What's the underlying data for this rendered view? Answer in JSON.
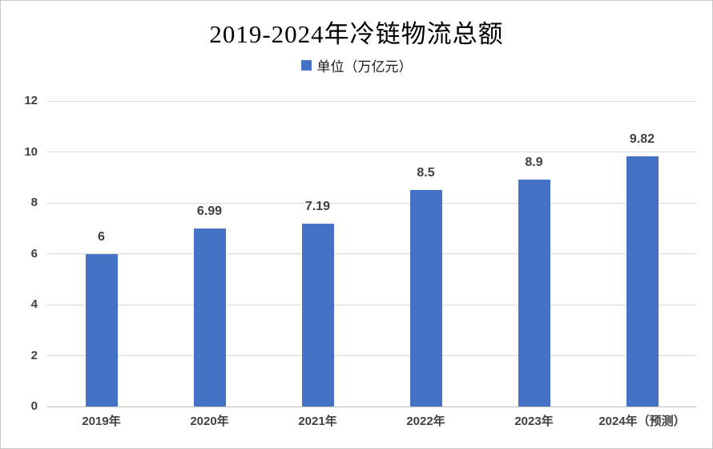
{
  "chart_data": {
    "type": "bar",
    "title": "2019-2024年冷链物流总额",
    "legend": "单位（万亿元）",
    "legend_position": "top",
    "categories": [
      "2019年",
      "2020年",
      "2021年",
      "2022年",
      "2023年",
      "2024年（预测）"
    ],
    "values": [
      6,
      6.99,
      7.19,
      8.5,
      8.9,
      9.82
    ],
    "data_labels": [
      "6",
      "6.99",
      "7.19",
      "8.5",
      "8.9",
      "9.82"
    ],
    "xlabel": "",
    "ylabel": "",
    "ylim": [
      0,
      12
    ],
    "yticks": [
      0,
      2,
      4,
      6,
      8,
      10,
      12
    ],
    "grid": true,
    "colors": {
      "bar": "#4472C4",
      "gridline": "#D9D9D9",
      "axis_line": "#BFBFBF",
      "tick_label": "#404040",
      "data_label": "#404040",
      "title": "#000000",
      "background": "#FFFFFF",
      "frame_border": "#C8C8C8"
    }
  }
}
